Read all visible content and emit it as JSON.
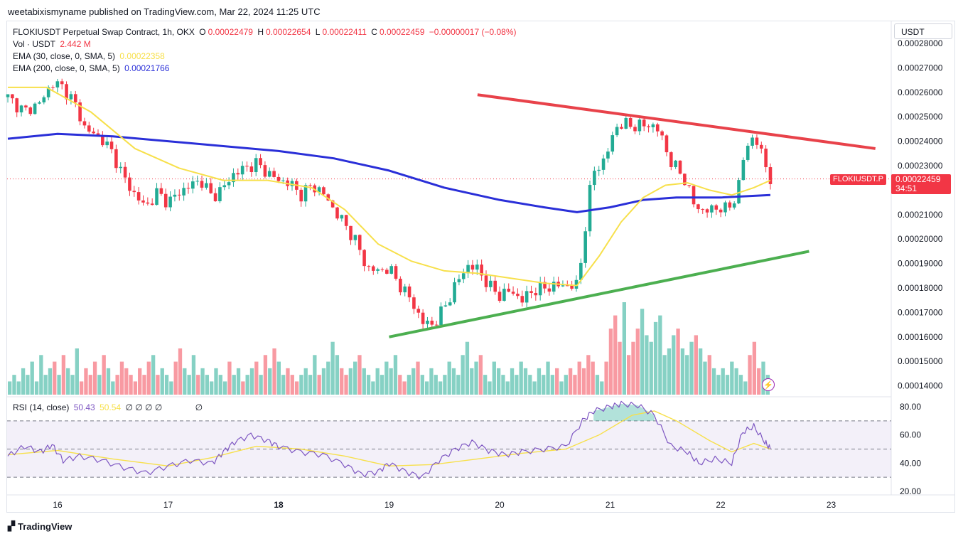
{
  "caption": "weetabixismyname published on TradingView.com, Mar 22, 2024 11:25 UTC",
  "footer": {
    "brand": "TradingView"
  },
  "legend": {
    "symbol": "FLOKIUSDT Perpetual Swap Contract, 1h, OKX",
    "o_label": "O",
    "o": "0.00022479",
    "h_label": "H",
    "h": "0.00022654",
    "l_label": "L",
    "l": "0.00022411",
    "c_label": "C",
    "c": "0.00022459",
    "change": "−0.00000017 (−0.08%)",
    "vol_label": "Vol · USDT",
    "vol": "2.442 M",
    "ema30_label": "EMA (30, close, 0, SMA, 5)",
    "ema30": "0.00022358",
    "ema200_label": "EMA (200, close, 0, SMA, 5)",
    "ema200": "0.00021766",
    "rsi_label": "RSI (14, close)",
    "rsi": "50.43",
    "rsi_ma": "50.54",
    "rsi_na": "∅ ∅ ∅ ∅",
    "rsi_na2": "∅"
  },
  "unit": "USDT",
  "price_tag": {
    "symbol": "FLOKIUSDT.P",
    "price": "0.00022459",
    "countdown": "34:51"
  },
  "colors": {
    "up": "#22ab94",
    "down": "#f23645",
    "ema30": "#f7e04b",
    "ema200": "#2a2fd8",
    "rsi": "#7e57c2",
    "resistance": "#e8424a",
    "support": "#4caf50"
  },
  "chart_data": {
    "type": "candlestick",
    "timeframe": "1h",
    "x_ticks": [
      "16",
      "17",
      "18",
      "19",
      "20",
      "21",
      "22",
      "23"
    ],
    "y_ticks": [
      "0.00028000",
      "0.00027000",
      "0.00026000",
      "0.00025000",
      "0.00024000",
      "0.00023000",
      "0.00021000",
      "0.00020000",
      "0.00019000",
      "0.00018000",
      "0.00017000",
      "0.00016000",
      "0.00015000",
      "0.00014000"
    ],
    "ylim": [
      0.00014,
      0.000283
    ],
    "price_path": [
      [
        15.55,
        0.000258
      ],
      [
        15.7,
        0.000252
      ],
      [
        15.85,
        0.000256
      ],
      [
        15.95,
        0.000264
      ],
      [
        16.05,
        0.000262
      ],
      [
        16.15,
        0.000256
      ],
      [
        16.25,
        0.000245
      ],
      [
        16.4,
        0.000241
      ],
      [
        16.5,
        0.000235
      ],
      [
        16.6,
        0.000225
      ],
      [
        16.7,
        0.000218
      ],
      [
        16.8,
        0.000213
      ],
      [
        16.9,
        0.000219
      ],
      [
        17.0,
        0.000215
      ],
      [
        17.1,
        0.000219
      ],
      [
        17.2,
        0.000222
      ],
      [
        17.3,
        0.000224
      ],
      [
        17.4,
        0.000217
      ],
      [
        17.5,
        0.000221
      ],
      [
        17.6,
        0.000227
      ],
      [
        17.7,
        0.000229
      ],
      [
        17.8,
        0.000231
      ],
      [
        17.9,
        0.000227
      ],
      [
        18.0,
        0.000224
      ],
      [
        18.1,
        0.000223
      ],
      [
        18.2,
        0.000218
      ],
      [
        18.3,
        0.000222
      ],
      [
        18.4,
        0.000219
      ],
      [
        18.5,
        0.000212
      ],
      [
        18.6,
        0.000206
      ],
      [
        18.7,
        0.000199
      ],
      [
        18.8,
        0.000188
      ],
      [
        18.9,
        0.000187
      ],
      [
        19.0,
        0.000188
      ],
      [
        19.1,
        0.000181
      ],
      [
        19.2,
        0.000175
      ],
      [
        19.3,
        0.000166
      ],
      [
        19.4,
        0.000165
      ],
      [
        19.5,
        0.000172
      ],
      [
        19.6,
        0.000181
      ],
      [
        19.7,
        0.000189
      ],
      [
        19.8,
        0.000188
      ],
      [
        19.9,
        0.000181
      ],
      [
        20.0,
        0.000177
      ],
      [
        20.1,
        0.000179
      ],
      [
        20.2,
        0.000175
      ],
      [
        20.3,
        0.000179
      ],
      [
        20.4,
        0.00018
      ],
      [
        20.5,
        0.000181
      ],
      [
        20.6,
        0.000181
      ],
      [
        20.7,
        0.000181
      ],
      [
        20.75,
        0.000195
      ],
      [
        20.8,
        0.000215
      ],
      [
        20.85,
        0.000228
      ],
      [
        20.95,
        0.000232
      ],
      [
        21.05,
        0.000246
      ],
      [
        21.15,
        0.000247
      ],
      [
        21.25,
        0.000246
      ],
      [
        21.35,
        0.000247
      ],
      [
        21.45,
        0.000244
      ],
      [
        21.55,
        0.000231
      ],
      [
        21.65,
        0.000227
      ],
      [
        21.75,
        0.000215
      ],
      [
        21.85,
        0.000211
      ],
      [
        21.95,
        0.000213
      ],
      [
        22.05,
        0.000212
      ],
      [
        22.15,
        0.000218
      ],
      [
        22.22,
        0.000237
      ],
      [
        22.3,
        0.000242
      ],
      [
        22.4,
        0.000232
      ],
      [
        22.45,
        0.000224
      ]
    ],
    "ema30_path": [
      [
        15.55,
        0.000262
      ],
      [
        15.9,
        0.000262
      ],
      [
        16.3,
        0.000252
      ],
      [
        16.7,
        0.000237
      ],
      [
        17.1,
        0.000229
      ],
      [
        17.5,
        0.000224
      ],
      [
        17.9,
        0.000224
      ],
      [
        18.3,
        0.000221
      ],
      [
        18.6,
        0.000212
      ],
      [
        18.9,
        0.000198
      ],
      [
        19.2,
        0.000191
      ],
      [
        19.5,
        0.000187
      ],
      [
        19.8,
        0.000186
      ],
      [
        20.1,
        0.000184
      ],
      [
        20.4,
        0.000182
      ],
      [
        20.7,
        0.000181
      ],
      [
        20.9,
        0.000193
      ],
      [
        21.1,
        0.000207
      ],
      [
        21.3,
        0.000217
      ],
      [
        21.5,
        0.000222
      ],
      [
        21.7,
        0.000223
      ],
      [
        21.9,
        0.00022
      ],
      [
        22.1,
        0.000218
      ],
      [
        22.3,
        0.000221
      ],
      [
        22.45,
        0.000224
      ]
    ],
    "ema200_path": [
      [
        15.55,
        0.000241
      ],
      [
        16.0,
        0.000243
      ],
      [
        16.5,
        0.000242
      ],
      [
        17.0,
        0.00024
      ],
      [
        17.5,
        0.000238
      ],
      [
        18.0,
        0.000236
      ],
      [
        18.5,
        0.000233
      ],
      [
        19.0,
        0.000228
      ],
      [
        19.5,
        0.000221
      ],
      [
        20.0,
        0.000216
      ],
      [
        20.4,
        0.000213
      ],
      [
        20.7,
        0.000211
      ],
      [
        21.0,
        0.000213
      ],
      [
        21.3,
        0.000216
      ],
      [
        21.6,
        0.000217
      ],
      [
        22.0,
        0.000217
      ],
      [
        22.45,
        0.000218
      ]
    ],
    "resistance_line": [
      [
        19.8,
        0.000259
      ],
      [
        23.4,
        0.000237
      ]
    ],
    "support_line": [
      [
        19.0,
        0.00016
      ],
      [
        22.8,
        0.000195
      ]
    ],
    "volume_levels": [
      2,
      3,
      2,
      4,
      3,
      5,
      2,
      6,
      3,
      4,
      5,
      3,
      6,
      4,
      3,
      7,
      2,
      4,
      3,
      5,
      3,
      6,
      4,
      2,
      3,
      5,
      4,
      3,
      2,
      4,
      3,
      5,
      6,
      3,
      4,
      3,
      2,
      5,
      7,
      4,
      3,
      6,
      3,
      4,
      3,
      2,
      4,
      3,
      2,
      5,
      3,
      4,
      2,
      3,
      4,
      5,
      3,
      6,
      4,
      7,
      5,
      3,
      4,
      3,
      2,
      3,
      4,
      3,
      6,
      3,
      4,
      5,
      8,
      6,
      4,
      3,
      4,
      5,
      6,
      4,
      3,
      2,
      4,
      3,
      5,
      4,
      6,
      3,
      2,
      3,
      4,
      5,
      3,
      2,
      4,
      3,
      2,
      3,
      5,
      4,
      3,
      6,
      8,
      4,
      5,
      6,
      3,
      2,
      5,
      4,
      3,
      2,
      4,
      3,
      5,
      4,
      3,
      2,
      4,
      3,
      5,
      3,
      4,
      2,
      3,
      4,
      3,
      5,
      4,
      6,
      5,
      3,
      2,
      5,
      10,
      12,
      8,
      14,
      6,
      8,
      10,
      13,
      9,
      8,
      11,
      12,
      6,
      7,
      9,
      10,
      7,
      6,
      8,
      9,
      7,
      5,
      6,
      4,
      3,
      4,
      3,
      5,
      4,
      3,
      2,
      6,
      8,
      4,
      5,
      3
    ],
    "rsi_ticks": [
      "80.00",
      "60.00",
      "40.00",
      "20.00"
    ],
    "rsi_levels": [
      70,
      50,
      30
    ],
    "rsi_path": [
      [
        15.55,
        45
      ],
      [
        15.7,
        52
      ],
      [
        15.85,
        48
      ],
      [
        15.95,
        53
      ],
      [
        16.05,
        42
      ],
      [
        16.2,
        45
      ],
      [
        16.4,
        42
      ],
      [
        16.6,
        37
      ],
      [
        16.8,
        33
      ],
      [
        17.0,
        38
      ],
      [
        17.2,
        42
      ],
      [
        17.4,
        40
      ],
      [
        17.5,
        48
      ],
      [
        17.6,
        55
      ],
      [
        17.75,
        60
      ],
      [
        17.9,
        56
      ],
      [
        18.0,
        52
      ],
      [
        18.2,
        48
      ],
      [
        18.4,
        46
      ],
      [
        18.6,
        39
      ],
      [
        18.75,
        32
      ],
      [
        18.9,
        34
      ],
      [
        19.0,
        40
      ],
      [
        19.15,
        34
      ],
      [
        19.3,
        30
      ],
      [
        19.45,
        42
      ],
      [
        19.6,
        50
      ],
      [
        19.75,
        55
      ],
      [
        19.9,
        49
      ],
      [
        20.05,
        46
      ],
      [
        20.2,
        48
      ],
      [
        20.4,
        50
      ],
      [
        20.6,
        52
      ],
      [
        20.75,
        70
      ],
      [
        20.85,
        77
      ],
      [
        21.0,
        80
      ],
      [
        21.1,
        82
      ],
      [
        21.25,
        81
      ],
      [
        21.4,
        74
      ],
      [
        21.55,
        52
      ],
      [
        21.7,
        48
      ],
      [
        21.8,
        40
      ],
      [
        21.95,
        43
      ],
      [
        22.1,
        40
      ],
      [
        22.2,
        62
      ],
      [
        22.3,
        66
      ],
      [
        22.4,
        55
      ],
      [
        22.45,
        50
      ]
    ],
    "rsi_ma_path": [
      [
        15.55,
        46
      ],
      [
        16.0,
        49
      ],
      [
        16.5,
        43
      ],
      [
        17.0,
        38
      ],
      [
        17.4,
        44
      ],
      [
        17.8,
        52
      ],
      [
        18.2,
        50
      ],
      [
        18.6,
        45
      ],
      [
        19.0,
        38
      ],
      [
        19.4,
        39
      ],
      [
        19.8,
        43
      ],
      [
        20.2,
        47
      ],
      [
        20.6,
        50
      ],
      [
        20.9,
        60
      ],
      [
        21.2,
        74
      ],
      [
        21.4,
        77
      ],
      [
        21.6,
        70
      ],
      [
        21.9,
        56
      ],
      [
        22.1,
        48
      ],
      [
        22.3,
        54
      ],
      [
        22.45,
        50
      ]
    ]
  }
}
